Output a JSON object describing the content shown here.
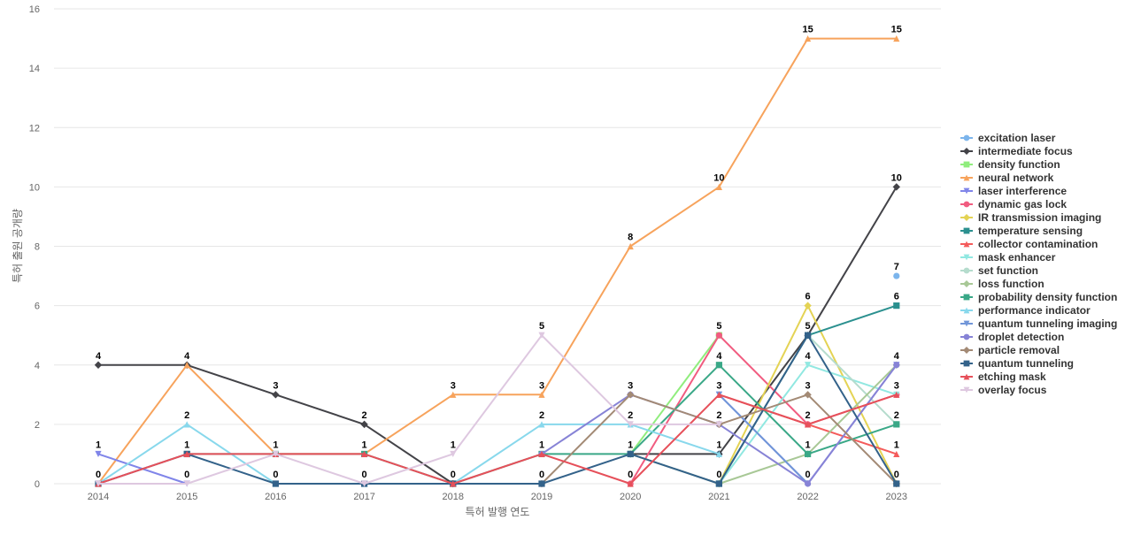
{
  "chart_data": {
    "type": "line",
    "xlabel": "특허 발행 연도",
    "ylabel": "특허 출원 공개량",
    "x": [
      "2014",
      "2015",
      "2016",
      "2017",
      "2018",
      "2019",
      "2020",
      "2021",
      "2022",
      "2023"
    ],
    "ylim": [
      0,
      16
    ],
    "yticks": [
      0,
      2,
      4,
      6,
      8,
      10,
      12,
      14,
      16
    ],
    "grid": true,
    "legend_position": "right",
    "series": [
      {
        "name": "excitation laser",
        "color": "#7cb5ec",
        "marker": "circle",
        "values": [
          null,
          null,
          null,
          null,
          null,
          null,
          null,
          1,
          null,
          7
        ]
      },
      {
        "name": "intermediate focus",
        "color": "#434348",
        "marker": "diamond",
        "values": [
          4,
          4,
          3,
          2,
          0,
          null,
          1,
          1,
          5,
          10
        ]
      },
      {
        "name": "density function",
        "color": "#90ed7d",
        "marker": "square",
        "values": [
          null,
          null,
          null,
          null,
          null,
          null,
          1,
          5,
          null,
          null
        ]
      },
      {
        "name": "neural network",
        "color": "#f7a35c",
        "marker": "triangle",
        "values": [
          0,
          4,
          1,
          1,
          3,
          3,
          8,
          10,
          15,
          15
        ]
      },
      {
        "name": "laser interference",
        "color": "#8085e9",
        "marker": "triangle-down",
        "values": [
          1,
          0,
          null,
          null,
          null,
          null,
          null,
          3,
          0,
          4
        ]
      },
      {
        "name": "dynamic gas lock",
        "color": "#f15c80",
        "marker": "circle",
        "values": [
          null,
          null,
          null,
          null,
          null,
          null,
          0,
          5,
          2,
          3
        ]
      },
      {
        "name": "IR transmission imaging",
        "color": "#e4d354",
        "marker": "diamond",
        "values": [
          null,
          null,
          null,
          null,
          null,
          null,
          null,
          0,
          6,
          0
        ]
      },
      {
        "name": "temperature sensing",
        "color": "#2b908f",
        "marker": "square",
        "values": [
          null,
          null,
          null,
          null,
          null,
          null,
          null,
          0,
          5,
          6
        ]
      },
      {
        "name": "collector contamination",
        "color": "#f45b5b",
        "marker": "triangle",
        "values": [
          null,
          null,
          null,
          null,
          null,
          null,
          null,
          3,
          2,
          1
        ]
      },
      {
        "name": "mask enhancer",
        "color": "#91e8e1",
        "marker": "triangle-down",
        "values": [
          null,
          null,
          null,
          null,
          null,
          null,
          null,
          0,
          4,
          3
        ]
      },
      {
        "name": "set function",
        "color": "#b5dccd",
        "marker": "circle",
        "values": [
          null,
          null,
          null,
          null,
          null,
          null,
          null,
          null,
          5,
          2
        ]
      },
      {
        "name": "loss function",
        "color": "#a8c896",
        "marker": "diamond",
        "values": [
          null,
          null,
          null,
          null,
          null,
          null,
          1,
          0,
          1,
          4
        ]
      },
      {
        "name": "probability density function",
        "color": "#3aa887",
        "marker": "square",
        "values": [
          null,
          1,
          1,
          1,
          0,
          1,
          1,
          4,
          1,
          2
        ]
      },
      {
        "name": "performance indicator",
        "color": "#88d8ec",
        "marker": "triangle",
        "values": [
          0,
          2,
          0,
          0,
          0,
          2,
          2,
          1,
          null,
          null
        ]
      },
      {
        "name": "quantum tunneling imaging",
        "color": "#7196d8",
        "marker": "triangle-down",
        "values": [
          null,
          null,
          null,
          null,
          null,
          null,
          null,
          3,
          0,
          null
        ]
      },
      {
        "name": "droplet detection",
        "color": "#8783d6",
        "marker": "circle",
        "values": [
          null,
          null,
          null,
          null,
          null,
          1,
          3,
          2,
          0,
          4
        ]
      },
      {
        "name": "particle removal",
        "color": "#a38a75",
        "marker": "diamond",
        "values": [
          null,
          null,
          null,
          null,
          null,
          0,
          3,
          2,
          3,
          0
        ]
      },
      {
        "name": "quantum tunneling",
        "color": "#33628a",
        "marker": "square",
        "values": [
          0,
          1,
          0,
          0,
          0,
          0,
          1,
          0,
          5,
          0
        ]
      },
      {
        "name": "etching mask",
        "color": "#e6505a",
        "marker": "triangle",
        "values": [
          0,
          1,
          1,
          1,
          0,
          1,
          0,
          3,
          2,
          3
        ]
      },
      {
        "name": "overlay focus",
        "color": "#dec8e0",
        "marker": "triangle-down",
        "values": [
          0,
          0,
          1,
          0,
          1,
          5,
          2,
          2,
          null,
          null
        ]
      }
    ],
    "data_labels": [
      {
        "x": "2014",
        "y": 4,
        "text": "4"
      },
      {
        "x": "2014",
        "y": 1,
        "text": "1"
      },
      {
        "x": "2014",
        "y": 0,
        "text": "0"
      },
      {
        "x": "2015",
        "y": 4,
        "text": "4"
      },
      {
        "x": "2015",
        "y": 2,
        "text": "2"
      },
      {
        "x": "2015",
        "y": 1,
        "text": "1"
      },
      {
        "x": "2015",
        "y": 0,
        "text": "0"
      },
      {
        "x": "2016",
        "y": 3,
        "text": "3"
      },
      {
        "x": "2016",
        "y": 1,
        "text": "1"
      },
      {
        "x": "2016",
        "y": 0,
        "text": "0"
      },
      {
        "x": "2017",
        "y": 2,
        "text": "2"
      },
      {
        "x": "2017",
        "y": 1,
        "text": "1"
      },
      {
        "x": "2017",
        "y": 0,
        "text": "0"
      },
      {
        "x": "2018",
        "y": 3,
        "text": "3"
      },
      {
        "x": "2018",
        "y": 1,
        "text": "1"
      },
      {
        "x": "2018",
        "y": 0,
        "text": "0"
      },
      {
        "x": "2019",
        "y": 5,
        "text": "5"
      },
      {
        "x": "2019",
        "y": 3,
        "text": "3"
      },
      {
        "x": "2019",
        "y": 2,
        "text": "2"
      },
      {
        "x": "2019",
        "y": 1,
        "text": "1"
      },
      {
        "x": "2019",
        "y": 0,
        "text": "0"
      },
      {
        "x": "2020",
        "y": 8,
        "text": "8"
      },
      {
        "x": "2020",
        "y": 3,
        "text": "3"
      },
      {
        "x": "2020",
        "y": 2,
        "text": "2"
      },
      {
        "x": "2020",
        "y": 1,
        "text": "1"
      },
      {
        "x": "2020",
        "y": 0,
        "text": "0"
      },
      {
        "x": "2021",
        "y": 10,
        "text": "10"
      },
      {
        "x": "2021",
        "y": 5,
        "text": "5"
      },
      {
        "x": "2021",
        "y": 4,
        "text": "4"
      },
      {
        "x": "2021",
        "y": 3,
        "text": "3"
      },
      {
        "x": "2021",
        "y": 2,
        "text": "2"
      },
      {
        "x": "2021",
        "y": 1,
        "text": "1"
      },
      {
        "x": "2021",
        "y": 0,
        "text": "0"
      },
      {
        "x": "2022",
        "y": 15,
        "text": "15"
      },
      {
        "x": "2022",
        "y": 6,
        "text": "6"
      },
      {
        "x": "2022",
        "y": 5,
        "text": "5"
      },
      {
        "x": "2022",
        "y": 4,
        "text": "4"
      },
      {
        "x": "2022",
        "y": 3,
        "text": "3"
      },
      {
        "x": "2022",
        "y": 2,
        "text": "2"
      },
      {
        "x": "2022",
        "y": 1,
        "text": "1"
      },
      {
        "x": "2022",
        "y": 0,
        "text": "0"
      },
      {
        "x": "2023",
        "y": 15,
        "text": "15"
      },
      {
        "x": "2023",
        "y": 10,
        "text": "10"
      },
      {
        "x": "2023",
        "y": 7,
        "text": "7"
      },
      {
        "x": "2023",
        "y": 6,
        "text": "6"
      },
      {
        "x": "2023",
        "y": 4,
        "text": "4"
      },
      {
        "x": "2023",
        "y": 3,
        "text": "3"
      },
      {
        "x": "2023",
        "y": 2,
        "text": "2"
      },
      {
        "x": "2023",
        "y": 1,
        "text": "1"
      },
      {
        "x": "2023",
        "y": 0,
        "text": "0"
      }
    ]
  }
}
